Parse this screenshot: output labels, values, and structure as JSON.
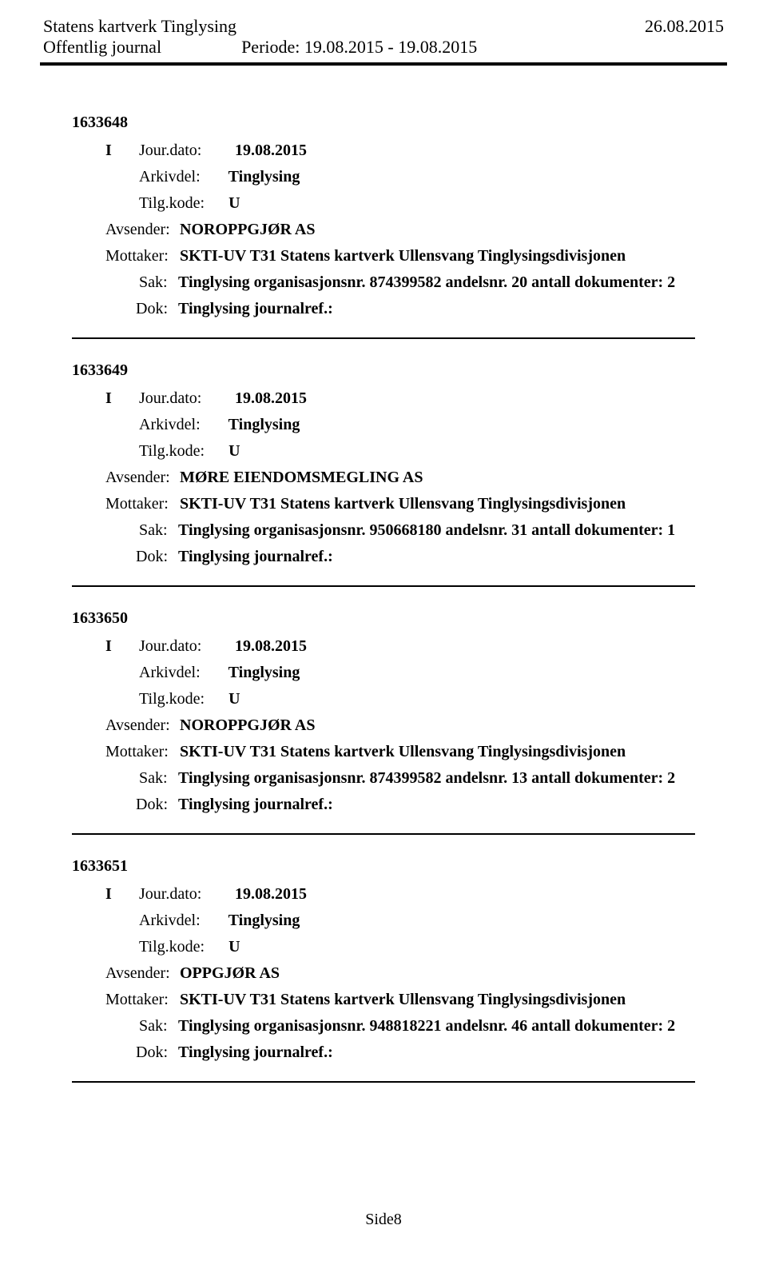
{
  "header": {
    "title_left": "Statens kartverk Tinglysing",
    "title_right": "26.08.2015",
    "subtitle": "Offentlig journal",
    "period": "Periode: 19.08.2015 - 19.08.2015"
  },
  "labels": {
    "jourdato": "Jour.dato:",
    "arkivdel": "Arkivdel:",
    "tilgkode": "Tilg.kode:",
    "avsender": "Avsender:",
    "mottaker": "Mottaker:",
    "sak": "Sak:",
    "dok": "Dok:"
  },
  "entries": [
    {
      "id": "1633648",
      "direction": "I",
      "jourdato": "19.08.2015",
      "arkivdel": "Tinglysing",
      "tilgkode": "U",
      "avsender": "NOROPPGJØR AS",
      "mottaker": "SKTI-UV T31 Statens kartverk Ullensvang Tinglysingsdivisjonen",
      "sak": "Tinglysing organisasjonsnr. 874399582 andelsnr. 20 antall dokumenter: 2",
      "dok": "Tinglysing journalref.:"
    },
    {
      "id": "1633649",
      "direction": "I",
      "jourdato": "19.08.2015",
      "arkivdel": "Tinglysing",
      "tilgkode": "U",
      "avsender": "MØRE EIENDOMSMEGLING AS",
      "mottaker": "SKTI-UV T31 Statens kartverk Ullensvang Tinglysingsdivisjonen",
      "sak": "Tinglysing organisasjonsnr. 950668180 andelsnr. 31 antall dokumenter: 1",
      "dok": "Tinglysing journalref.:"
    },
    {
      "id": "1633650",
      "direction": "I",
      "jourdato": "19.08.2015",
      "arkivdel": "Tinglysing",
      "tilgkode": "U",
      "avsender": "NOROPPGJØR AS",
      "mottaker": "SKTI-UV T31 Statens kartverk Ullensvang Tinglysingsdivisjonen",
      "sak": "Tinglysing organisasjonsnr. 874399582 andelsnr. 13 antall dokumenter: 2",
      "dok": "Tinglysing journalref.:"
    },
    {
      "id": "1633651",
      "direction": "I",
      "jourdato": "19.08.2015",
      "arkivdel": "Tinglysing",
      "tilgkode": "U",
      "avsender": "OPPGJØR AS",
      "mottaker": "SKTI-UV T31 Statens kartverk Ullensvang Tinglysingsdivisjonen",
      "sak": "Tinglysing organisasjonsnr. 948818221 andelsnr. 46 antall dokumenter: 2",
      "dok": "Tinglysing journalref.:"
    }
  ],
  "footer": {
    "page": "Side8"
  }
}
